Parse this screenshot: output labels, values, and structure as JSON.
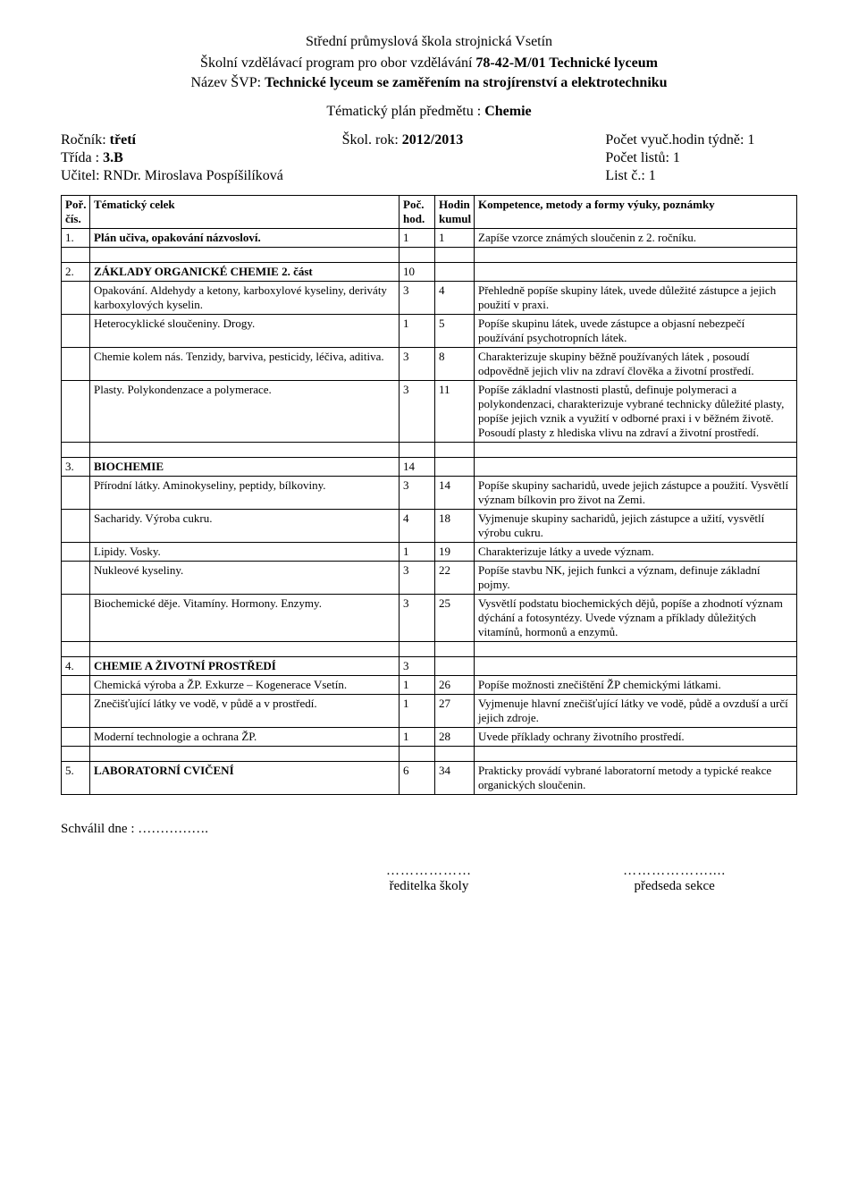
{
  "header": {
    "school": "Střední průmyslová škola strojnická Vsetín",
    "program_prefix": "Školní vzdělávací program pro obor vzdělávání ",
    "program_code": "78-42-M/01 Technické lyceum",
    "svp_prefix": "Název ŠVP: ",
    "svp_name": "Technické lyceum se zaměřením na strojírenství a elektrotechniku",
    "subject_prefix": "Tématický plán předmětu : ",
    "subject": "Chemie"
  },
  "info": {
    "rocnik_label": "Ročník: ",
    "rocnik_value": "třetí",
    "skolrok_label": "Škol. rok: ",
    "skolrok_value": "2012/2013",
    "hodin_label": "Počet vyuč.hodin týdně: 1",
    "trida_label": "Třída : ",
    "trida_value": "3.B",
    "listu": "Počet listů: 1",
    "ucitel_label": "Učitel: ",
    "ucitel_value": "RNDr. Miroslava Pospíšilíková",
    "listc": "List č.: 1"
  },
  "table": {
    "head": {
      "c1": "Poř. čís.",
      "c2": "Tématický celek",
      "c3": "Poč. hod.",
      "c4": "Hodin kumul",
      "c5": "Kompetence, metody a formy výuky, poznámky"
    },
    "rows": [
      {
        "n": "1.",
        "topic": "Plán učiva, opakování názvosloví.",
        "h": "1",
        "c": "1",
        "note": "Zapíše vzorce známých sloučenin z 2. ročníku.",
        "bold": true
      },
      {
        "spacer": true
      },
      {
        "n": "2.",
        "topic": "ZÁKLADY ORGANICKÉ CHEMIE 2. část",
        "h": "10",
        "c": "",
        "note": "",
        "bold": true
      },
      {
        "n": "",
        "topic": "Opakování. Aldehydy a ketony, karboxylové kyseliny, deriváty karboxylových kyselin.",
        "h": "3",
        "c": "4",
        "note": "Přehledně popíše skupiny látek, uvede důležité zástupce a  jejich použití v praxi."
      },
      {
        "n": "",
        "topic": "Heterocyklické sloučeniny. Drogy.",
        "h": "1",
        "c": "5",
        "note": "Popíše skupinu látek, uvede zástupce a objasní nebezpečí používání psychotropních látek."
      },
      {
        "n": "",
        "topic": "Chemie kolem nás. Tenzidy, barviva, pesticidy, léčiva, aditiva.",
        "h": "3",
        "c": "8",
        "note": "Charakterizuje skupiny běžně používaných látek , posoudí odpovědně jejich vliv na zdraví člověka a životní prostředí."
      },
      {
        "n": "",
        "topic": "Plasty. Polykondenzace a polymerace.",
        "h": "3",
        "c": "11",
        "note": "Popíše základní vlastnosti plastů, definuje polymeraci a polykondenzaci, charakterizuje vybrané technicky důležité  plasty, popíše jejich vznik a využití  v odborné praxi i v běžném životě.\nPosoudí plasty z hlediska vlivu na zdraví a životní prostředí."
      },
      {
        "spacer": true
      },
      {
        "n": "3.",
        "topic": "BIOCHEMIE",
        "h": "14",
        "c": "",
        "note": "",
        "bold": true
      },
      {
        "n": "",
        "topic": "Přírodní látky. Aminokyseliny, peptidy, bílkoviny.",
        "h": "3",
        "c": "14",
        "note": "Popíše skupiny sacharidů, uvede jejich zástupce a použití.  Vysvětlí význam bílkovin pro život na Zemi."
      },
      {
        "n": "",
        "topic": "Sacharidy. Výroba cukru.",
        "h": "4",
        "c": "18",
        "note": "Vyjmenuje skupiny sacharidů, jejich zástupce a užití, vysvětlí výrobu cukru."
      },
      {
        "n": "",
        "topic": "Lipidy. Vosky.",
        "h": "1",
        "c": "19",
        "note": "Charakterizuje látky a uvede význam."
      },
      {
        "n": "",
        "topic": "Nukleové kyseliny.",
        "h": "3",
        "c": "22",
        "note": "Popíše stavbu NK, jejich funkci a význam, definuje základní pojmy."
      },
      {
        "n": "",
        "topic": "Biochemické děje. Vitamíny. Hormony. Enzymy.",
        "h": "3",
        "c": "25",
        "note": "Vysvětlí podstatu biochemických dějů, popíše a zhodnotí význam dýchání a fotosyntézy. Uvede význam a příklady důležitých vitamínů, hormonů a enzymů."
      },
      {
        "spacer": true
      },
      {
        "n": "4.",
        "topic": "CHEMIE A ŽIVOTNÍ PROSTŘEDÍ",
        "h": "3",
        "c": "",
        "note": "",
        "bold": true
      },
      {
        "n": "",
        "topic": "Chemická výroba a ŽP. Exkurze – Kogenerace Vsetín.",
        "h": "1",
        "c": "26",
        "note": "Popíše možnosti znečištění ŽP chemickými látkami."
      },
      {
        "n": "",
        "topic": "Znečišťující látky ve vodě, v půdě a v prostředí.",
        "h": "1",
        "c": "27",
        "note": "Vyjmenuje hlavní znečišťující látky ve vodě, půdě a ovzduší a určí jejich zdroje."
      },
      {
        "n": "",
        "topic": "Moderní technologie a ochrana ŽP.",
        "h": "1",
        "c": "28",
        "note": "Uvede příklady ochrany životního prostředí."
      },
      {
        "spacer": true
      },
      {
        "n": "5.",
        "topic": "LABORATORNÍ CVIČENÍ",
        "h": "6",
        "c": "34",
        "note": "Prakticky provádí vybrané laboratorní  metody a typické reakce organických sloučenin.",
        "bold": true
      }
    ]
  },
  "footer": {
    "approved": "Schválil dne : …………….",
    "dots_left": "………………",
    "dots_right": "………………....",
    "sig_left": "ředitelka školy",
    "sig_right": "předseda sekce"
  }
}
